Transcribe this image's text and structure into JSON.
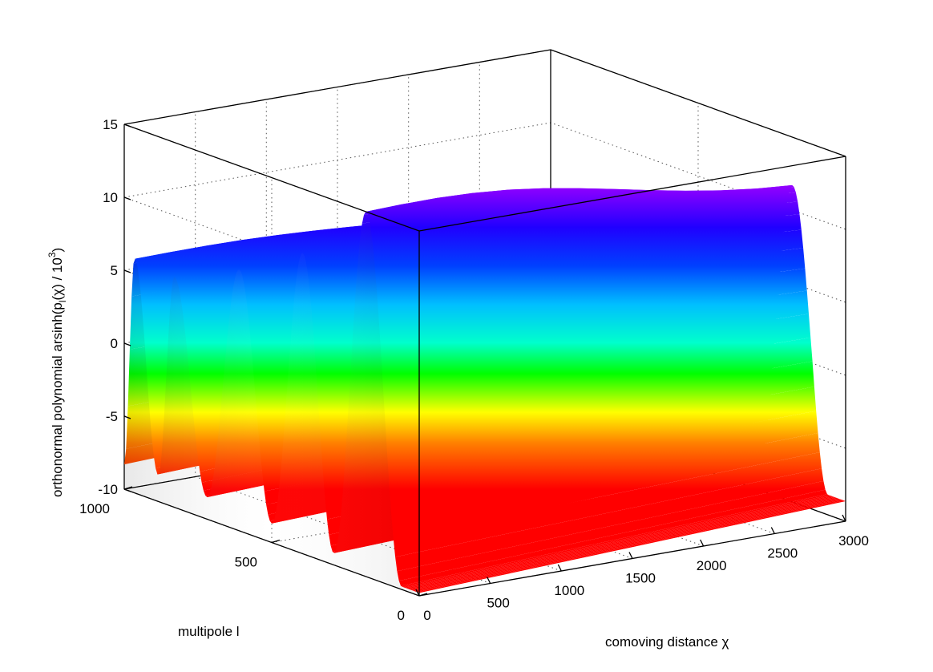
{
  "chart_data": {
    "type": "surface",
    "title": "",
    "xlabel": "comoving distance χ",
    "ylabel": "multipole l",
    "zlabel": "orthonormal polynomial arsinh(p_l(χ) / 10^3)",
    "zlabel_parts": {
      "pre": "orthonormal polynomial arsinh(p",
      "sub1": "l",
      "mid": "(χ) / 10",
      "sup": "3",
      "post": ")"
    },
    "xlim": [
      0,
      3000
    ],
    "ylim": [
      0,
      1000
    ],
    "zlim": [
      -10,
      15
    ],
    "xticks": [
      "0",
      "500",
      "1000",
      "1500",
      "2000",
      "2500",
      "3000"
    ],
    "yticks": [
      "0",
      "500",
      "1000"
    ],
    "zticks": [
      "-10",
      "-5",
      "0",
      "5",
      "10",
      "15"
    ],
    "grid": true,
    "colormap": "hsv",
    "ridges": [
      {
        "l": 965,
        "crest_z": 6.1,
        "chi_end": 0
      },
      {
        "l": 830,
        "crest_z": 5.8,
        "chi_end": 3000
      },
      {
        "l": 610,
        "crest_z": 7.9,
        "chi_end": 3000
      },
      {
        "l": 395,
        "crest_z": 10.6,
        "chi_end": 3000
      },
      {
        "l": 180,
        "crest_z": 15.0,
        "chi_end": 3000
      }
    ],
    "troughs": [
      {
        "l": 885,
        "z": -8.2
      },
      {
        "l": 720,
        "z": -8.5
      },
      {
        "l": 500,
        "z": -8.7
      },
      {
        "l": 290,
        "z": -9.2
      },
      {
        "l": 60,
        "z": -9.8
      }
    ]
  }
}
